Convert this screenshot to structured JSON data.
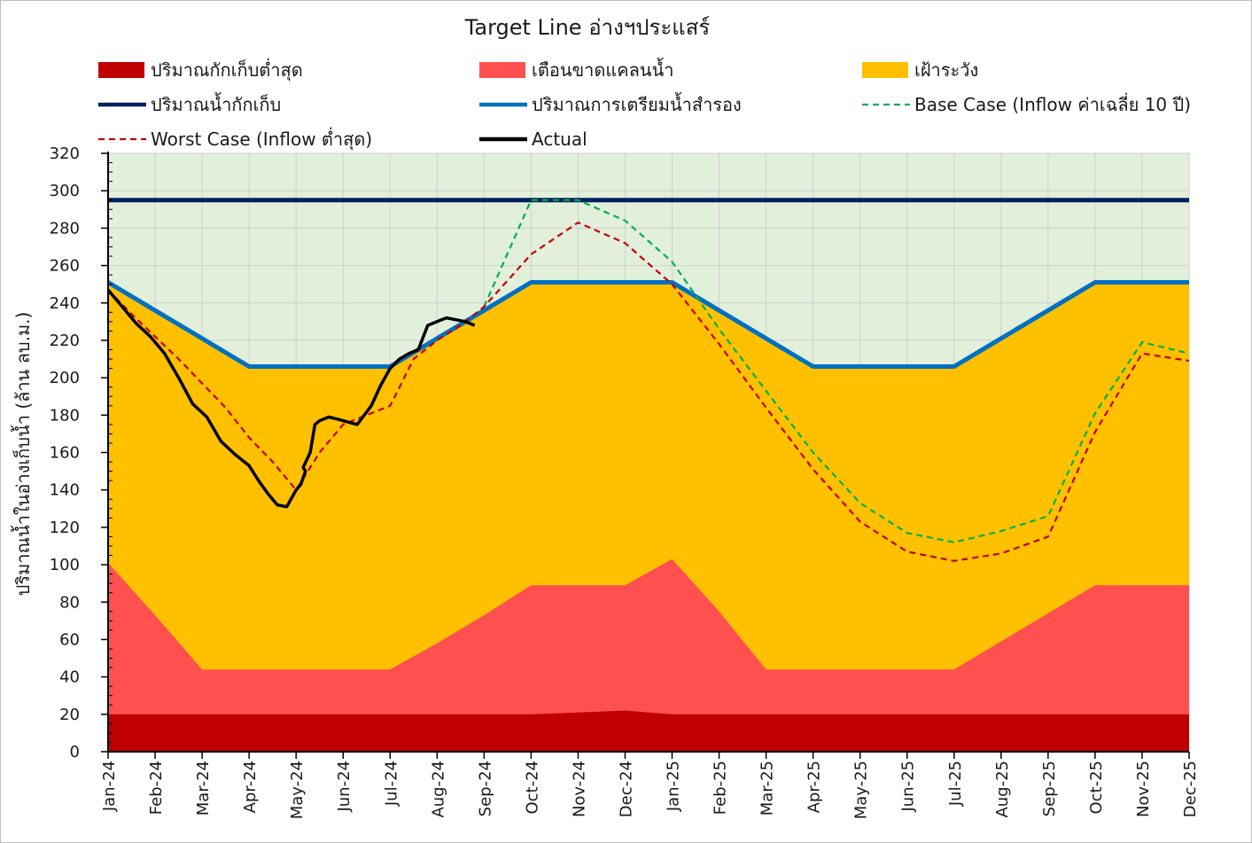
{
  "chart_data": {
    "type": "area",
    "title": "Target Line อ่างฯประแสร์",
    "xlabel": "",
    "ylabel": "ปริมาณน้ำในอ่างเก็บน้ำ (ล้าน ลบ.ม.)",
    "ylim": [
      0,
      320
    ],
    "yticks": [
      0,
      20,
      40,
      60,
      80,
      100,
      120,
      140,
      160,
      180,
      200,
      220,
      240,
      260,
      280,
      300,
      320
    ],
    "grid": true,
    "legend_position": "top",
    "categories": [
      "Jan-24",
      "Feb-24",
      "Mar-24",
      "Apr-24",
      "May-24",
      "Jun-24",
      "Jul-24",
      "Aug-24",
      "Sep-24",
      "Oct-24",
      "Nov-24",
      "Dec-24",
      "Jan-25",
      "Feb-25",
      "Mar-25",
      "Apr-25",
      "May-25",
      "Jun-25",
      "Jul-25",
      "Aug-25",
      "Sep-25",
      "Oct-25",
      "Nov-25",
      "Dec-25"
    ],
    "background_zone_color": "#e2efda",
    "series": [
      {
        "name": "ปริมาณกักเก็บต่ำสุด",
        "kind": "area",
        "color": "#c00000",
        "values": [
          20,
          20,
          20,
          20,
          20,
          20,
          20,
          20,
          20,
          20,
          21,
          22,
          20,
          20,
          20,
          20,
          20,
          20,
          20,
          20,
          20,
          20,
          20,
          20
        ]
      },
      {
        "name": "เตือนขาดแคลนน้ำ",
        "kind": "area",
        "color": "#ff5050",
        "values": [
          101,
          73,
          44,
          44,
          44,
          44,
          44,
          58,
          73,
          89,
          89,
          89,
          103,
          75,
          44,
          44,
          44,
          44,
          44,
          59,
          74,
          89,
          89,
          89
        ]
      },
      {
        "name": "เฝ้าระวัง",
        "kind": "area",
        "color": "#ffc000",
        "values": [
          251,
          236,
          221,
          206,
          206,
          206,
          206,
          221,
          236,
          251,
          251,
          251,
          251,
          236,
          221,
          206,
          206,
          206,
          206,
          221,
          236,
          251,
          251,
          251
        ]
      },
      {
        "name": "ปริมาณน้ำกักเก็บ",
        "kind": "line",
        "color": "#002060",
        "dash": "",
        "values": [
          295,
          295,
          295,
          295,
          295,
          295,
          295,
          295,
          295,
          295,
          295,
          295,
          295,
          295,
          295,
          295,
          295,
          295,
          295,
          295,
          295,
          295,
          295,
          295
        ]
      },
      {
        "name": "ปริมาณการเตรียมน้ำสำรอง",
        "kind": "line",
        "color": "#0070c0",
        "dash": "",
        "values": [
          251,
          236,
          221,
          206,
          206,
          206,
          206,
          221,
          236,
          251,
          251,
          251,
          251,
          236,
          221,
          206,
          206,
          206,
          206,
          221,
          236,
          251,
          251,
          251
        ]
      },
      {
        "name": "Base Case (Inflow ค่าเฉลี่ย 10 ปี)",
        "kind": "line",
        "color": "#00b050",
        "dash": "7,5",
        "x": [
          8,
          9,
          10,
          11,
          12,
          13,
          14,
          15,
          16,
          17,
          18,
          19,
          20,
          21,
          22,
          23
        ],
        "values": [
          238,
          295,
          295,
          284,
          262,
          226,
          193,
          160,
          133,
          117,
          112,
          118,
          126,
          181,
          219,
          213
        ]
      },
      {
        "name": "Worst Case (Inflow ต่ำสุด)",
        "kind": "line",
        "color": "#c00000",
        "dash": "7,5",
        "x": [
          0,
          0.5,
          1,
          1.5,
          2,
          2.5,
          3,
          3.5,
          4,
          4.5,
          5,
          5.5,
          6,
          6.5,
          7,
          7.5,
          8,
          9,
          10,
          11,
          12,
          13,
          14,
          15,
          16,
          17,
          18,
          19,
          20,
          21,
          22,
          23
        ],
        "values": [
          247,
          234,
          222,
          210,
          197,
          184,
          168,
          155,
          140,
          160,
          175,
          180,
          185,
          210,
          220,
          228,
          238,
          266,
          283,
          272,
          250,
          218,
          184,
          151,
          123,
          107,
          102,
          106,
          115,
          171,
          213,
          209
        ]
      },
      {
        "name": "Actual",
        "kind": "line",
        "color": "#000000",
        "dash": "",
        "x": [
          0,
          0.3,
          0.6,
          0.9,
          1.2,
          1.5,
          1.8,
          2.1,
          2.4,
          2.7,
          3.0,
          3.2,
          3.4,
          3.6,
          3.8,
          4.0,
          4.1,
          4.2,
          4.15,
          4.3,
          4.4,
          4.5,
          4.7,
          5.0,
          5.3,
          5.6,
          5.8,
          6.0,
          6.2,
          6.4,
          6.6,
          6.8,
          7.0,
          7.2,
          7.4,
          7.6,
          7.8
        ],
        "values": [
          247,
          238,
          229,
          222,
          213,
          200,
          186,
          179,
          166,
          159,
          153,
          145,
          138,
          132,
          131,
          140,
          143,
          150,
          152,
          160,
          175,
          177,
          179,
          177,
          175,
          185,
          196,
          205,
          210,
          213,
          215,
          228,
          230,
          232,
          231,
          230,
          228
        ]
      }
    ]
  }
}
